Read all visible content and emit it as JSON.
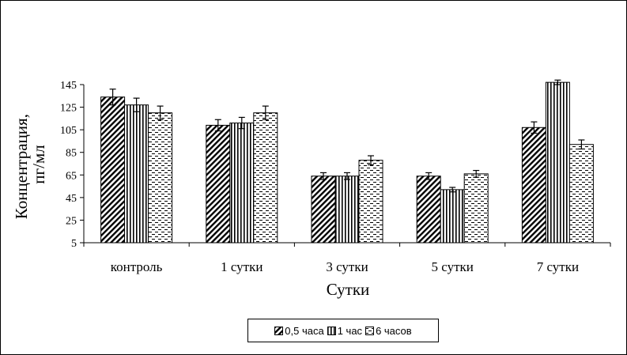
{
  "chart_data": {
    "type": "bar",
    "categories": [
      "контроль",
      "1 сутки",
      "3 сутки",
      "5 сутки",
      "7 сутки"
    ],
    "series": [
      {
        "name": "0,5 часа",
        "pattern": "diag",
        "values": [
          134,
          109,
          64,
          64,
          107
        ],
        "errors": [
          7,
          5,
          3,
          3,
          5
        ]
      },
      {
        "name": "1 час",
        "pattern": "vert",
        "values": [
          127,
          111,
          64,
          52,
          147
        ],
        "errors": [
          6,
          5,
          3,
          2,
          2
        ]
      },
      {
        "name": "6 часов",
        "pattern": "dash",
        "values": [
          120,
          120,
          78,
          66,
          92
        ],
        "errors": [
          6,
          6,
          4,
          3,
          4
        ]
      }
    ],
    "ylabel_line1": "Концентрация,",
    "ylabel_line2": "пг/мл",
    "xlabel": "Сутки",
    "yticks": [
      5,
      25,
      45,
      65,
      85,
      105,
      125,
      145
    ],
    "ylim": [
      5,
      145
    ],
    "grid": false,
    "legend_position": "bottom"
  }
}
